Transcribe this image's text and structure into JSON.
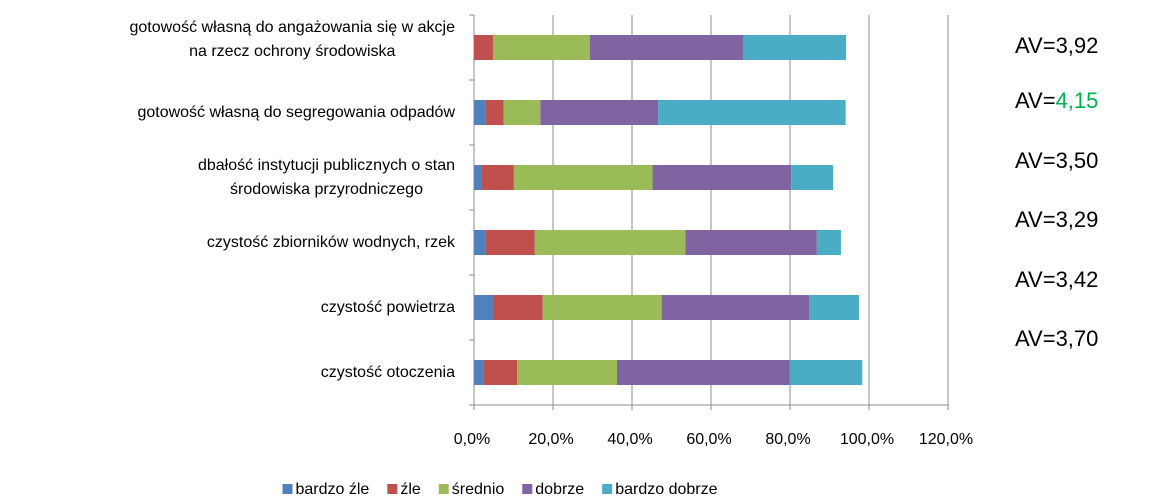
{
  "chart_data": {
    "type": "stacked-bar-horizontal",
    "categories": [
      "gotowość własną do angażowania się w akcje\nna rzecz ochrony środowiska",
      "gotowość własną do segregowania odpadów",
      "dbałość instytucji publicznych o stan\nśrodowiska przyrodniczego",
      "czystość zbiorników wodnych, rzek",
      "czystość powietrza",
      "czystość otoczenia"
    ],
    "series": [
      {
        "name": "bardzo źle",
        "color": "#4f81bd",
        "values": [
          0,
          3.0,
          1.8,
          3.0,
          4.8,
          2.3
        ]
      },
      {
        "name": "źle",
        "color": "#c0504d",
        "values": [
          4.8,
          4.5,
          8.3,
          12.4,
          12.6,
          8.6
        ]
      },
      {
        "name": "średnio",
        "color": "#9bbb59",
        "values": [
          24.5,
          9.3,
          35.1,
          38.1,
          30.1,
          25.3
        ]
      },
      {
        "name": "dobrze",
        "color": "#8064a2",
        "values": [
          38.9,
          29.8,
          35.1,
          33.3,
          37.4,
          43.7
        ]
      },
      {
        "name": "bardzo dobrze",
        "color": "#4bacc6",
        "values": [
          26.0,
          47.5,
          10.6,
          6.1,
          12.6,
          18.4
        ]
      }
    ],
    "xlim": [
      0,
      120
    ],
    "xticks": [
      {
        "value": 0,
        "label": "0,0%"
      },
      {
        "value": 20,
        "label": "20,0%"
      },
      {
        "value": 40,
        "label": "40,0%"
      },
      {
        "value": 60,
        "label": "60,0%"
      },
      {
        "value": 80,
        "label": "80,0%"
      },
      {
        "value": 100,
        "label": "100,0%"
      },
      {
        "value": 120,
        "label": "120,0%"
      }
    ],
    "grid": true,
    "legend": "bottom",
    "annotations": [
      [
        "AV=3,92"
      ],
      [
        "AV=",
        "4,15"
      ],
      [
        "AV=3,50"
      ],
      [
        "AV=3,29"
      ],
      [
        "AV=3,42"
      ],
      [
        "AV=3,70"
      ]
    ],
    "annotation_highlight_color": "#00b050"
  }
}
